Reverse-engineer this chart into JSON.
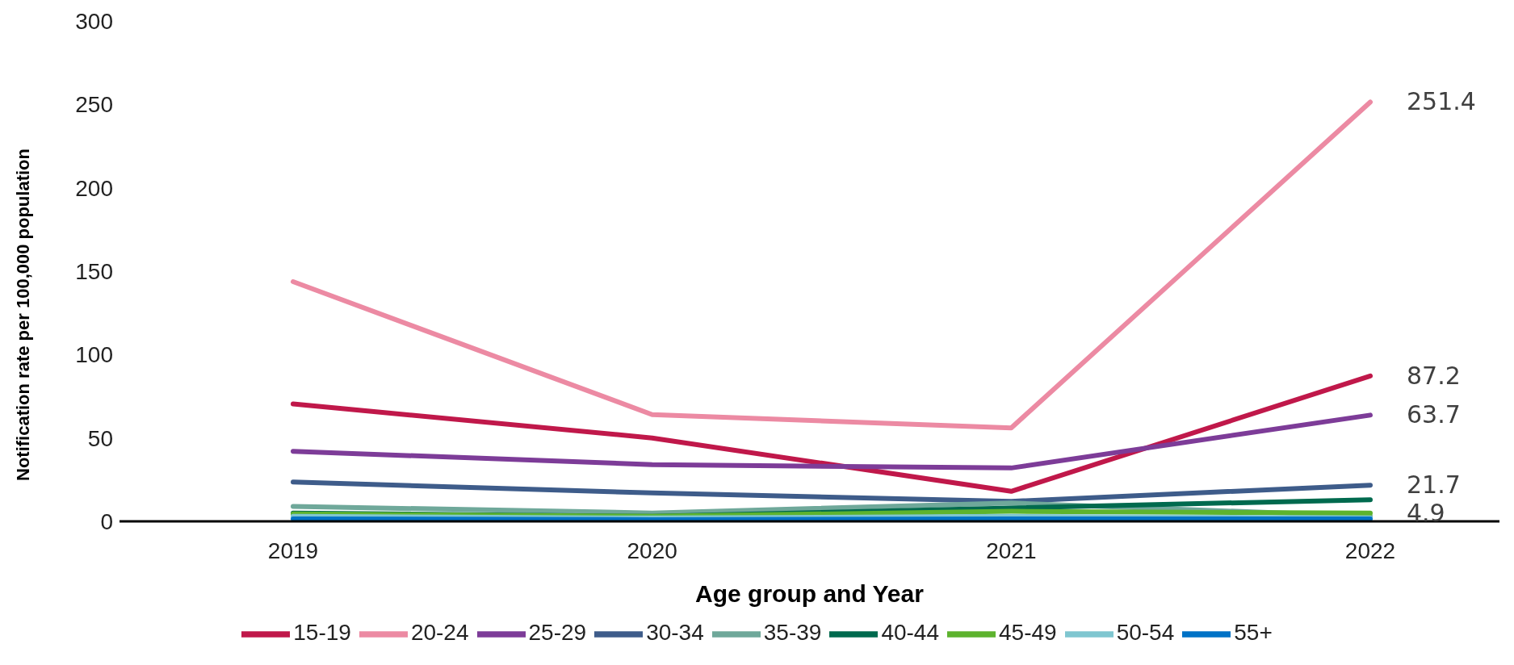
{
  "chart_data": {
    "type": "line",
    "xlabel": "Age group and Year",
    "ylabel": "Notification rate per 100,000 population",
    "categories": [
      "2019",
      "2020",
      "2021",
      "2022"
    ],
    "ylim": [
      0,
      300
    ],
    "yticks": [
      0,
      50,
      100,
      150,
      200,
      250,
      300
    ],
    "grid": false,
    "legend": "bottom",
    "marker": "none",
    "line_style": "solid",
    "series": [
      {
        "name": "15-19",
        "color": "#c0184a",
        "values": [
          70.4,
          50,
          18,
          87.2
        ],
        "value_labels": [
          null,
          null,
          null,
          "87.2"
        ]
      },
      {
        "name": "20-24",
        "color": "#ec8aa3",
        "values": [
          143.7,
          64,
          56,
          251.4
        ],
        "value_labels": [
          null,
          null,
          null,
          "251.4"
        ]
      },
      {
        "name": "25-29",
        "color": "#7d3c98",
        "values": [
          42,
          34,
          32,
          63.7
        ],
        "value_labels": [
          null,
          null,
          null,
          "63.7"
        ]
      },
      {
        "name": "30-34",
        "color": "#3e5c8a",
        "values": [
          23.6,
          17,
          12,
          21.7
        ],
        "value_labels": [
          null,
          null,
          null,
          "21.7"
        ]
      },
      {
        "name": "35-39",
        "color": "#6fa89a",
        "values": [
          9,
          5,
          11,
          3
        ],
        "value_labels": [
          null,
          null,
          null,
          null
        ]
      },
      {
        "name": "40-44",
        "color": "#006a4e",
        "values": [
          5,
          3,
          8,
          13
        ],
        "value_labels": [
          null,
          null,
          null,
          null
        ]
      },
      {
        "name": "45-49",
        "color": "#5db32e",
        "values": [
          4.5,
          3,
          6,
          4.9
        ],
        "value_labels": [
          null,
          null,
          null,
          "4.9"
        ]
      },
      {
        "name": "50-54",
        "color": "#7fc6d0",
        "values": [
          3,
          2,
          3,
          2
        ],
        "value_labels": [
          null,
          null,
          null,
          null
        ]
      },
      {
        "name": "55+",
        "color": "#0072c6",
        "values": [
          1.5,
          1,
          1.5,
          1.5
        ],
        "value_labels": [
          null,
          null,
          null,
          null
        ]
      }
    ]
  }
}
